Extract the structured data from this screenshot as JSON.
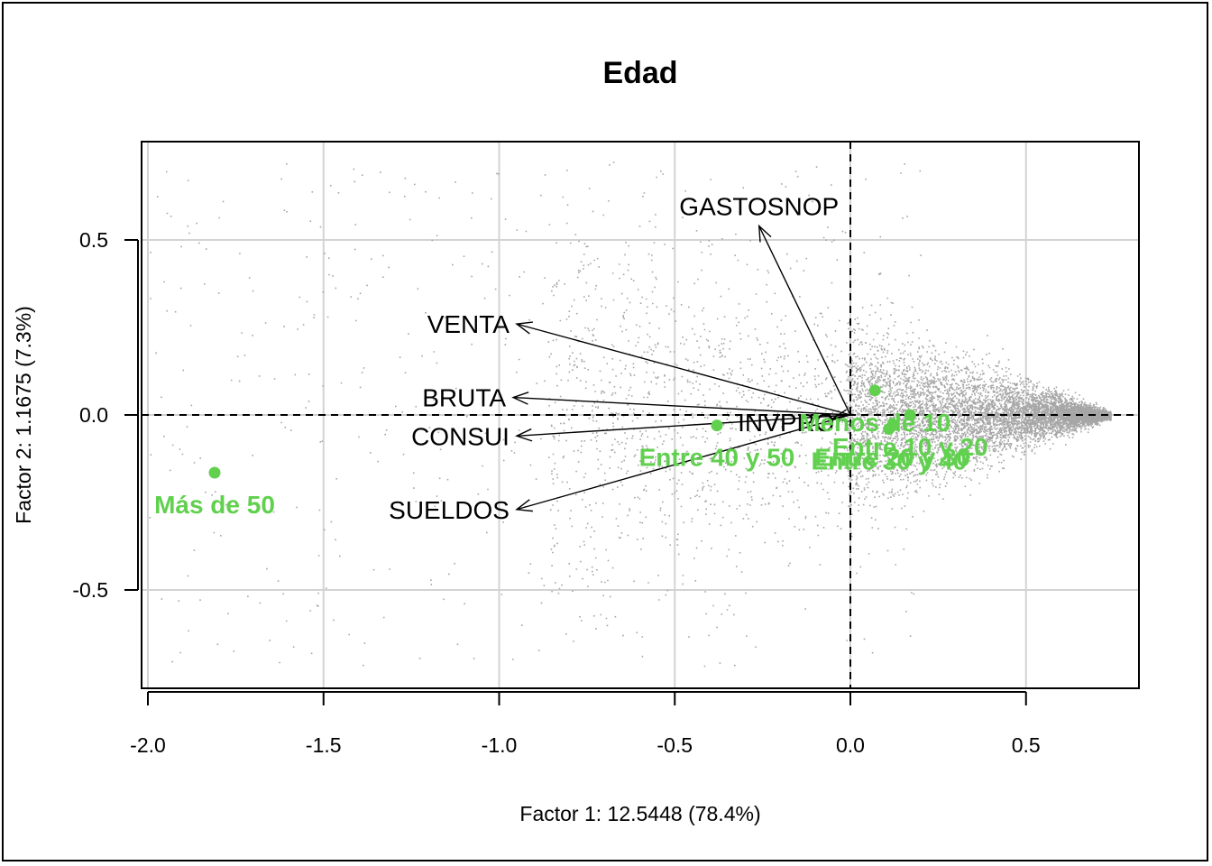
{
  "chart_data": {
    "type": "scatter",
    "title": "Edad",
    "xlabel": "Factor 1: 12.5448 (78.4%)",
    "ylabel": "Factor 2: 1.1675 (7.3%)",
    "xlim": [
      -2.02,
      0.82
    ],
    "ylim": [
      -0.78,
      0.78
    ],
    "grid": true,
    "x_ticks": [
      -2.0,
      -1.5,
      -1.0,
      -0.5,
      0.0,
      0.5
    ],
    "x_tick_labels": [
      "-2.0",
      "-1.5",
      "-1.0",
      "-0.5",
      "0.0",
      "0.5"
    ],
    "y_ticks": [
      -0.5,
      0.0,
      0.5
    ],
    "y_tick_labels": [
      "-0.5",
      "0.0",
      "0.5"
    ],
    "colors": {
      "individuals": "#a6a6a6",
      "categories": "#61d04f",
      "arrows": "#000000",
      "grid": "#d3d3d3"
    },
    "variables": [
      {
        "name": "GASTOSNOP",
        "x": -0.26,
        "y": 0.54
      },
      {
        "name": "VENTA",
        "x": -0.95,
        "y": 0.26
      },
      {
        "name": "BRUTA",
        "x": -0.96,
        "y": 0.05
      },
      {
        "name": "CONSUI",
        "x": -0.95,
        "y": -0.06
      },
      {
        "name": "SUELDOS",
        "x": -0.95,
        "y": -0.27
      },
      {
        "name": "INVPRO",
        "x": -0.05,
        "y": -0.01
      }
    ],
    "categories": [
      {
        "name": "Menos de 10",
        "x": 0.07,
        "y": 0.07
      },
      {
        "name": "Entre 10 y 20",
        "x": 0.17,
        "y": 0.0
      },
      {
        "name": "Entre 20 y 30",
        "x": 0.12,
        "y": -0.03
      },
      {
        "name": "Entre 30 y 40",
        "x": 0.11,
        "y": -0.04
      },
      {
        "name": "Entre 40 y 50",
        "x": -0.38,
        "y": -0.03
      },
      {
        "name": "Más de 50",
        "x": -1.81,
        "y": -0.165
      }
    ]
  }
}
